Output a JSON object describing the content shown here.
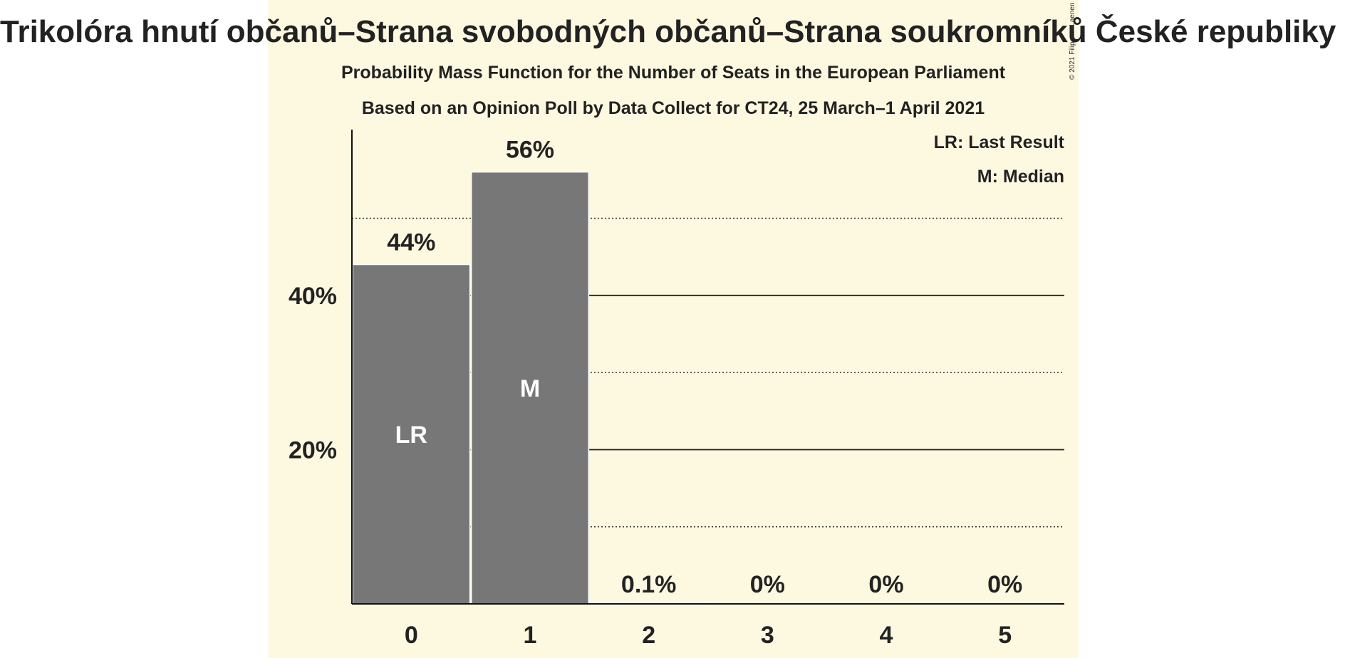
{
  "header": {
    "title": "Trikolóra hnutí občanů–Strana svobodných občanů–Strana soukromníků České republiky (ID)",
    "subtitle1": "Probability Mass Function for the Number of Seats in the European Parliament",
    "subtitle2": "Based on an Opinion Poll by Data Collect for CT24, 25 March–1 April 2021"
  },
  "legend": {
    "last_result": "LR: Last Result",
    "median": "M: Median"
  },
  "copyright": "© 2021 Filip van Laenen",
  "colors": {
    "background": "#fdf9e1",
    "bar": "#777777",
    "text": "#222222",
    "bar_marker_text": "#ffffff"
  },
  "chart_data": {
    "type": "bar",
    "title": "Trikolóra hnutí občanů–Strana svobodných občanů–Strana soukromníků České republiky (ID)",
    "xlabel": "",
    "ylabel": "",
    "categories": [
      "0",
      "1",
      "2",
      "3",
      "4",
      "5"
    ],
    "values": [
      44,
      56,
      0.1,
      0,
      0,
      0
    ],
    "value_labels": [
      "44%",
      "56%",
      "0.1%",
      "0%",
      "0%",
      "0%"
    ],
    "bar_markers": [
      "LR",
      "M",
      "",
      "",
      "",
      ""
    ],
    "ylim": [
      0,
      61.5
    ],
    "yticks": [
      {
        "value": 20,
        "label": "20%",
        "style": "solid"
      },
      {
        "value": 40,
        "label": "40%",
        "style": "solid"
      }
    ],
    "minor_gridlines": [
      10,
      30,
      50
    ]
  }
}
